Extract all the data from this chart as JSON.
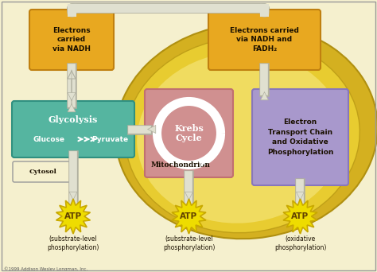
{
  "bg_color": "#f5f0ce",
  "mito_outer_color": "#d4b020",
  "mito_mid_color": "#e8cc30",
  "mito_light_color": "#f0dc60",
  "krebs_box_color": "#d09090",
  "glycolysis_box_color": "#55b5a0",
  "electron_box_color": "#a898cc",
  "nadh_box_color": "#e8a820",
  "atp_color": "#f0e020",
  "arrow_fill": "#e0e0d0",
  "arrow_edge": "#b0b0a0",
  "text_dark": "#1a1000",
  "text_white": "#ffffff",
  "border_color": "#aaaaaa",
  "copyright": "©1999 Addison Wesley Longman, Inc.",
  "labels": {
    "electrons_nadh": "Electrons\ncarried\nvia NADH",
    "electrons_nadh_fadh2": "Electrons carried\nvia NADH and\nFADH₂",
    "glycolysis_title": "Glycolysis",
    "glucose_pyruvate": "Glucose        Pyruvate",
    "krebs": "Krebs\nCycle",
    "electron_transport": "Electron\nTransport Chain\nand Oxidative\nPhosphorylation",
    "cytosol": "Cytosol",
    "mitochondrion": "Mitochondrion",
    "atp": "ATP",
    "sub_level1": "(substrate-level\nphosphorylation)",
    "sub_level2": "(substrate-level\nphosphorylation)",
    "oxidative": "(oxidative\nphosphorylation)"
  }
}
